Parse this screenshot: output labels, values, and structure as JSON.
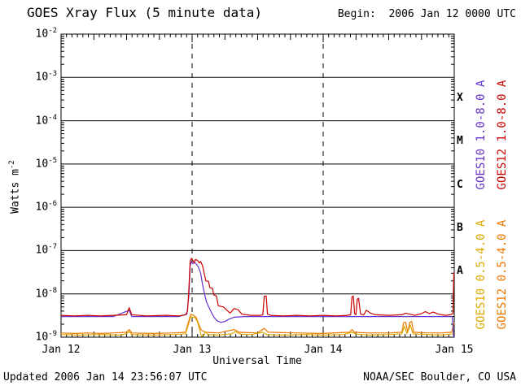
{
  "header": {
    "title": "GOES Xray Flux (5 minute data)",
    "begin": "Begin:  2006 Jan 12 0000 UTC"
  },
  "footer": {
    "updated": "Updated 2006 Jan 14 23:56:07 UTC",
    "source": "NOAA/SEC Boulder, CO USA"
  },
  "chart_data": {
    "type": "line",
    "title": "GOES Xray Flux (5 minute data)",
    "xlabel": "Universal Time",
    "ylabel_base": "Watts m",
    "ylabel_exp": "-2",
    "y_unit": "Watts m^-2",
    "y_scale": "log10",
    "ylim": [
      1e-09,
      0.01
    ],
    "ylim_exp": [
      -2,
      -9
    ],
    "xlim_days": [
      0,
      3
    ],
    "grid": "horizontal solid black each decade; dashed vertical at day boundaries",
    "y_decades": [
      -2,
      -3,
      -4,
      -5,
      -6,
      -7,
      -8,
      -9
    ],
    "x_ticks": [
      {
        "label": "Jan 12",
        "day": 0
      },
      {
        "label": "Jan 13",
        "day": 1
      },
      {
        "label": "Jan 14",
        "day": 2
      },
      {
        "label": "Jan 15",
        "day": 3
      }
    ],
    "day_gridlines": [
      1,
      2
    ],
    "flare_classes": [
      {
        "label": "X",
        "exp": -3.5
      },
      {
        "label": "M",
        "exp": -4.5
      },
      {
        "label": "C",
        "exp": -5.5
      },
      {
        "label": "B",
        "exp": -6.5
      },
      {
        "label": "A",
        "exp": -7.5
      }
    ],
    "right_labels": [
      {
        "text": "GOES10 1.0-8.0 A",
        "color": "#6633cc",
        "col": 0,
        "row": 0
      },
      {
        "text": "GOES12 1.0-8.0 A",
        "color": "#cc0000",
        "col": 1,
        "row": 0
      },
      {
        "text": "GOES10 0.5-4.0 A",
        "color": "#ddaa00",
        "col": 0,
        "row": 1
      },
      {
        "text": "GOES12 0.5-4.0 A",
        "color": "#ee7700",
        "col": 1,
        "row": 1
      }
    ],
    "series": [
      {
        "id": "goes12-short",
        "name": "GOES12 0.5-4.0 A",
        "color": "#ee7700",
        "points": [
          [
            0.0,
            1.25e-09
          ],
          [
            0.1,
            1.22e-09
          ],
          [
            0.2,
            1.25e-09
          ],
          [
            0.3,
            1.22e-09
          ],
          [
            0.4,
            1.25e-09
          ],
          [
            0.5,
            1.3e-09
          ],
          [
            0.52,
            1.5e-09
          ],
          [
            0.54,
            1.25e-09
          ],
          [
            0.7,
            1.22e-09
          ],
          [
            0.85,
            1.25e-09
          ],
          [
            0.95,
            1.3e-09
          ],
          [
            0.975,
            2.4e-09
          ],
          [
            0.99,
            3.4e-09
          ],
          [
            1.01,
            3.2e-09
          ],
          [
            1.03,
            2.9e-09
          ],
          [
            1.05,
            2e-09
          ],
          [
            1.07,
            1.45e-09
          ],
          [
            1.1,
            1.3e-09
          ],
          [
            1.2,
            1.25e-09
          ],
          [
            1.32,
            1.5e-09
          ],
          [
            1.36,
            1.3e-09
          ],
          [
            1.5,
            1.25e-09
          ],
          [
            1.55,
            1.6e-09
          ],
          [
            1.58,
            1.3e-09
          ],
          [
            1.8,
            1.25e-09
          ],
          [
            2.0,
            1.22e-09
          ],
          [
            2.2,
            1.3e-09
          ],
          [
            2.22,
            1.5e-09
          ],
          [
            2.24,
            1.3e-09
          ],
          [
            2.35,
            1.25e-09
          ],
          [
            2.5,
            1.25e-09
          ],
          [
            2.6,
            1.3e-09
          ],
          [
            2.615,
            2.2e-09
          ],
          [
            2.63,
            2.2e-09
          ],
          [
            2.645,
            1.3e-09
          ],
          [
            2.66,
            2.2e-09
          ],
          [
            2.675,
            2.3e-09
          ],
          [
            2.69,
            1.3e-09
          ],
          [
            2.8,
            1.25e-09
          ],
          [
            2.9,
            1.25e-09
          ],
          [
            2.98,
            1.3e-09
          ],
          [
            3.0,
            2.2e-09
          ]
        ]
      },
      {
        "id": "goes10-short",
        "name": "GOES10 0.5-4.0 A",
        "color": "#ddaa00",
        "points": [
          [
            0.0,
            1.15e-09
          ],
          [
            0.15,
            1.12e-09
          ],
          [
            0.3,
            1.15e-09
          ],
          [
            0.45,
            1.12e-09
          ],
          [
            0.5,
            1.2e-09
          ],
          [
            0.52,
            1.35e-09
          ],
          [
            0.54,
            1.15e-09
          ],
          [
            0.7,
            1.12e-09
          ],
          [
            0.85,
            1.15e-09
          ],
          [
            0.95,
            1.2e-09
          ],
          [
            0.975,
            2.1e-09
          ],
          [
            0.99,
            3e-09
          ],
          [
            1.0,
            2.8e-09
          ],
          [
            1.02,
            2.9e-09
          ],
          [
            1.04,
            2.3e-09
          ],
          [
            1.055,
            1.6e-09
          ],
          [
            1.07,
            1.05e-09
          ],
          [
            1.09,
            1.1e-09
          ],
          [
            1.1,
            1.35e-09
          ],
          [
            1.12,
            1.15e-09
          ],
          [
            1.2,
            1.12e-09
          ],
          [
            1.3,
            1.2e-09
          ],
          [
            1.33,
            1.35e-09
          ],
          [
            1.37,
            1.18e-09
          ],
          [
            1.45,
            1.15e-09
          ],
          [
            1.54,
            1.3e-09
          ],
          [
            1.57,
            1.15e-09
          ],
          [
            1.7,
            1.12e-09
          ],
          [
            1.85,
            1.15e-09
          ],
          [
            2.0,
            1.12e-09
          ],
          [
            2.15,
            1.15e-09
          ],
          [
            2.22,
            1.3e-09
          ],
          [
            2.25,
            1.18e-09
          ],
          [
            2.35,
            1.12e-09
          ],
          [
            2.5,
            1.15e-09
          ],
          [
            2.6,
            1.2e-09
          ],
          [
            2.62,
            1.8e-09
          ],
          [
            2.64,
            1.2e-09
          ],
          [
            2.665,
            1.9e-09
          ],
          [
            2.685,
            1.2e-09
          ],
          [
            2.8,
            1.15e-09
          ],
          [
            2.9,
            1.12e-09
          ],
          [
            3.0,
            1.2e-09
          ]
        ]
      },
      {
        "id": "goes10-long",
        "name": "GOES10 1.0-8.0 A",
        "color": "#6633cc",
        "points": [
          [
            0.0,
            3e-09
          ],
          [
            0.2,
            3e-09
          ],
          [
            0.4,
            3e-09
          ],
          [
            0.52,
            4.2e-09
          ],
          [
            0.54,
            3e-09
          ],
          [
            0.7,
            3e-09
          ],
          [
            0.9,
            3e-09
          ],
          [
            0.96,
            3.4e-09
          ],
          [
            0.975,
            9e-09
          ],
          [
            0.985,
            4.5e-08
          ],
          [
            0.995,
            5.6e-08
          ],
          [
            1.005,
            5e-08
          ],
          [
            1.02,
            5.3e-08
          ],
          [
            1.035,
            4.8e-08
          ],
          [
            1.05,
            4e-08
          ],
          [
            1.065,
            3e-08
          ],
          [
            1.08,
            1.6e-08
          ],
          [
            1.095,
            1e-08
          ],
          [
            1.11,
            6.5e-09
          ],
          [
            1.13,
            4.8e-09
          ],
          [
            1.15,
            3.6e-09
          ],
          [
            1.17,
            2.8e-09
          ],
          [
            1.19,
            2.4e-09
          ],
          [
            1.22,
            2.2e-09
          ],
          [
            1.25,
            2.3e-09
          ],
          [
            1.28,
            2.6e-09
          ],
          [
            1.32,
            2.9e-09
          ],
          [
            1.4,
            3e-09
          ],
          [
            1.55,
            3e-09
          ],
          [
            1.8,
            3e-09
          ],
          [
            2.0,
            3e-09
          ],
          [
            2.3,
            3e-09
          ],
          [
            2.6,
            3e-09
          ],
          [
            2.9,
            3e-09
          ],
          [
            2.985,
            3e-09
          ],
          [
            2.995,
            1.05e-09
          ],
          [
            3.0,
            1e-09
          ]
        ]
      },
      {
        "id": "goes12-long",
        "name": "GOES12 1.0-8.0 A",
        "color": "#cc0000",
        "points": [
          [
            0.0,
            3.2e-09
          ],
          [
            0.1,
            3.1e-09
          ],
          [
            0.2,
            3.2e-09
          ],
          [
            0.3,
            3.1e-09
          ],
          [
            0.4,
            3.2e-09
          ],
          [
            0.5,
            3.3e-09
          ],
          [
            0.52,
            4.8e-09
          ],
          [
            0.54,
            3.3e-09
          ],
          [
            0.65,
            3.1e-09
          ],
          [
            0.8,
            3.2e-09
          ],
          [
            0.9,
            3.1e-09
          ],
          [
            0.95,
            3.3e-09
          ],
          [
            0.965,
            4e-09
          ],
          [
            0.975,
            1.3e-08
          ],
          [
            0.985,
            5.8e-08
          ],
          [
            0.995,
            6.6e-08
          ],
          [
            1.005,
            6e-08
          ],
          [
            1.015,
            5.2e-08
          ],
          [
            1.025,
            6.2e-08
          ],
          [
            1.04,
            6e-08
          ],
          [
            1.055,
            5.2e-08
          ],
          [
            1.065,
            5.6e-08
          ],
          [
            1.08,
            4.4e-08
          ],
          [
            1.095,
            2.7e-08
          ],
          [
            1.105,
            2e-08
          ],
          [
            1.125,
            1.95e-08
          ],
          [
            1.135,
            1.4e-08
          ],
          [
            1.155,
            1.35e-08
          ],
          [
            1.165,
            9.5e-09
          ],
          [
            1.185,
            9e-09
          ],
          [
            1.2,
            5.3e-09
          ],
          [
            1.24,
            5e-09
          ],
          [
            1.265,
            4.2e-09
          ],
          [
            1.29,
            3.6e-09
          ],
          [
            1.32,
            4.6e-09
          ],
          [
            1.35,
            4.3e-09
          ],
          [
            1.38,
            3.4e-09
          ],
          [
            1.45,
            3.2e-09
          ],
          [
            1.52,
            3.2e-09
          ],
          [
            1.54,
            3.3e-09
          ],
          [
            1.55,
            8.8e-09
          ],
          [
            1.565,
            9e-09
          ],
          [
            1.575,
            3.4e-09
          ],
          [
            1.6,
            3.2e-09
          ],
          [
            1.7,
            3.1e-09
          ],
          [
            1.8,
            3.2e-09
          ],
          [
            1.9,
            3.1e-09
          ],
          [
            2.0,
            3.2e-09
          ],
          [
            2.1,
            3.1e-09
          ],
          [
            2.18,
            3.2e-09
          ],
          [
            2.21,
            3.3e-09
          ],
          [
            2.22,
            8.6e-09
          ],
          [
            2.23,
            8.9e-09
          ],
          [
            2.24,
            3.5e-09
          ],
          [
            2.25,
            3.3e-09
          ],
          [
            2.26,
            7.6e-09
          ],
          [
            2.27,
            7.9e-09
          ],
          [
            2.285,
            3.4e-09
          ],
          [
            2.31,
            3.3e-09
          ],
          [
            2.33,
            4.2e-09
          ],
          [
            2.36,
            3.6e-09
          ],
          [
            2.4,
            3.3e-09
          ],
          [
            2.5,
            3.2e-09
          ],
          [
            2.6,
            3.3e-09
          ],
          [
            2.63,
            3.6e-09
          ],
          [
            2.66,
            3.4e-09
          ],
          [
            2.7,
            3.2e-09
          ],
          [
            2.75,
            3.5e-09
          ],
          [
            2.78,
            3.9e-09
          ],
          [
            2.81,
            3.5e-09
          ],
          [
            2.84,
            3.8e-09
          ],
          [
            2.88,
            3.4e-09
          ],
          [
            2.93,
            3.2e-09
          ],
          [
            2.97,
            3.3e-09
          ],
          [
            2.99,
            3.5e-09
          ],
          [
            2.997,
            3e-08
          ],
          [
            3.0,
            3.2e-08
          ]
        ]
      }
    ]
  }
}
